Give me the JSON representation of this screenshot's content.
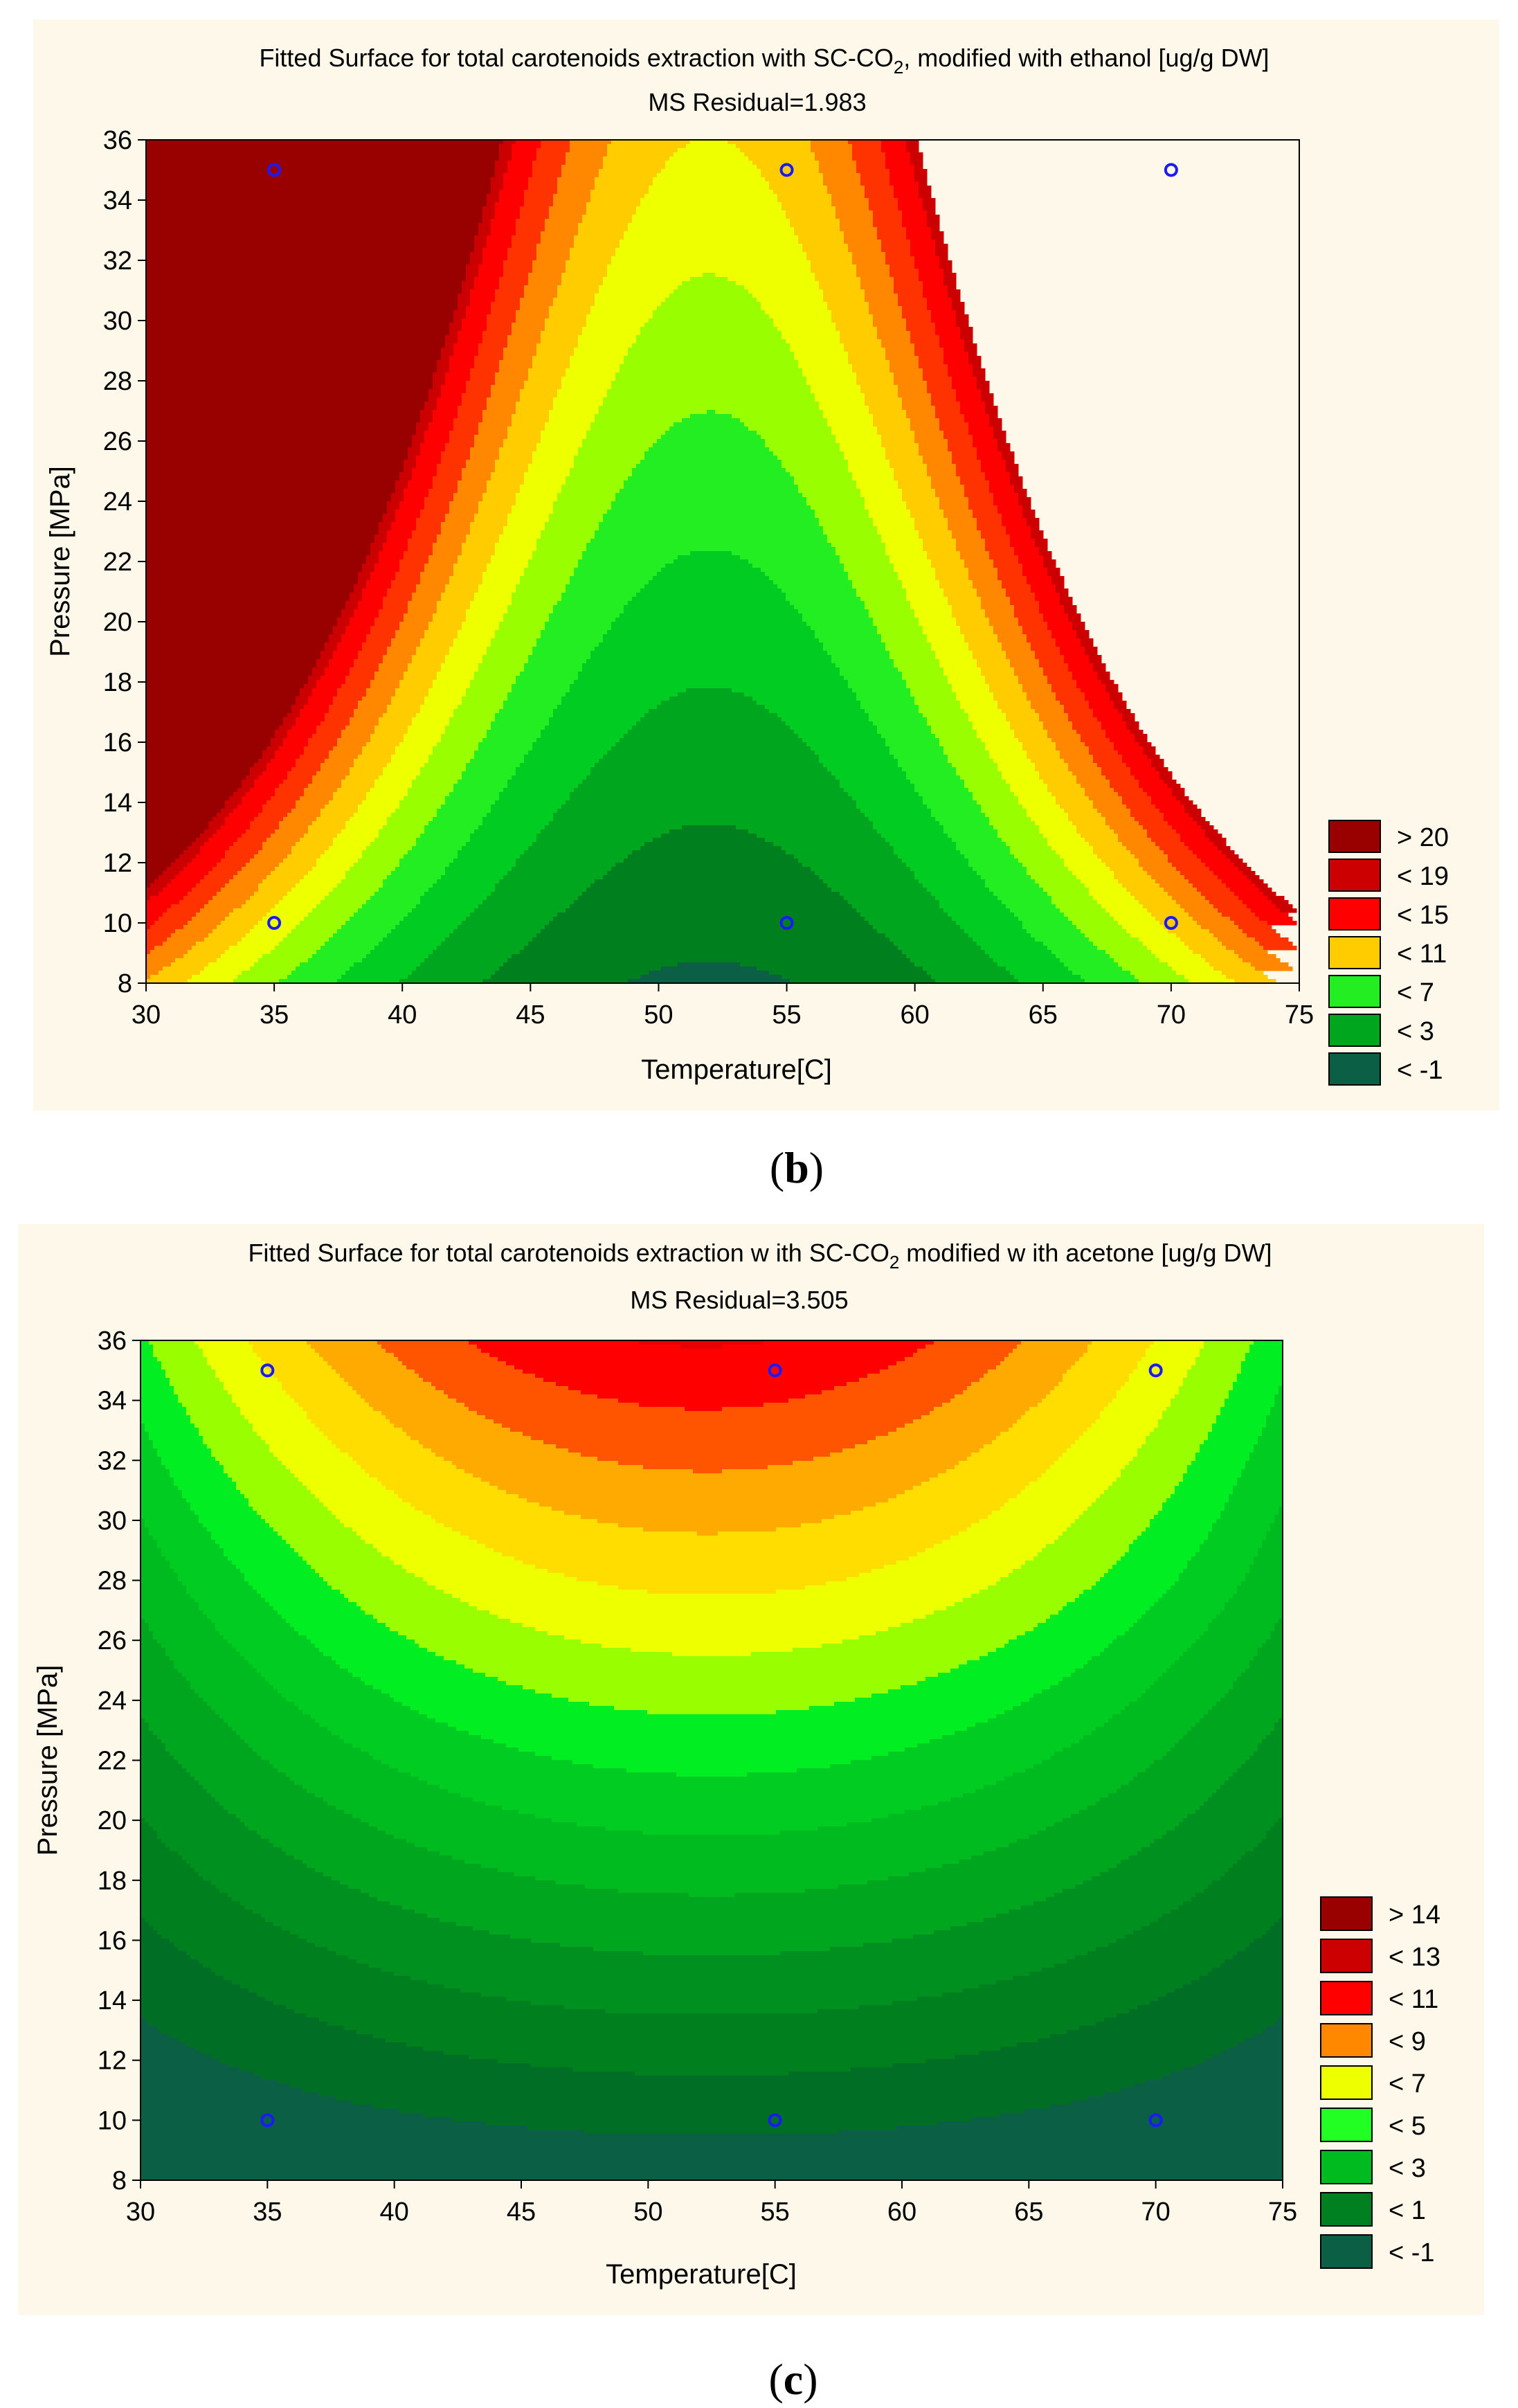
{
  "captions": {
    "b": {
      "open": "(",
      "letter": "b",
      "close": ")"
    },
    "c": {
      "open": "(",
      "letter": "c",
      "close": ")"
    }
  },
  "colors": {
    "panel_bg": "#fdf8ea",
    "design_point": "#1a1aff"
  },
  "chart_data": [
    {
      "id": "b",
      "type": "contour",
      "title_parts": [
        "Fitted Surface for total carotenoids extraction with SC-CO",
        "2",
        ", modified with ethanol [ug/g DW]"
      ],
      "subtitle": "MS Residual=1.983",
      "xlabel": "Temperature[C]",
      "ylabel": "Pressure [MPa]",
      "xlim": [
        30,
        75
      ],
      "ylim": [
        8,
        36
      ],
      "xticks": [
        30,
        35,
        40,
        45,
        50,
        55,
        60,
        65,
        70,
        75
      ],
      "yticks": [
        8,
        10,
        12,
        14,
        16,
        18,
        20,
        22,
        24,
        26,
        28,
        30,
        32,
        34,
        36
      ],
      "design_points": [
        [
          35,
          35
        ],
        [
          55,
          35
        ],
        [
          70,
          35
        ],
        [
          35,
          10
        ],
        [
          55,
          10
        ],
        [
          70,
          10
        ]
      ],
      "model": {
        "xc": 52,
        "y0": 8.5,
        "a": 0.4385,
        "b": 0.0039,
        "c": -1.1
      },
      "levels": [
        -1,
        1,
        3,
        5,
        7,
        9,
        11,
        13,
        15,
        17,
        19,
        20
      ],
      "fill_colors": [
        "#0b5f45",
        "#007f1e",
        "#00a61e",
        "#00cc22",
        "#22ee22",
        "#99ff00",
        "#eeff00",
        "#ffcc00",
        "#ff8800",
        "#ff3300",
        "#ff0000",
        "#cc0000",
        "#990000"
      ],
      "legend": [
        {
          "label": "> 20",
          "color": "#990000"
        },
        {
          "label": "< 19",
          "color": "#cc0000"
        },
        {
          "label": "< 15",
          "color": "#ff0000"
        },
        {
          "label": "< 11",
          "color": "#ffcc00"
        },
        {
          "label": "< 7",
          "color": "#22ee22"
        },
        {
          "label": "< 3",
          "color": "#00a61e"
        },
        {
          "label": "< -1",
          "color": "#0b5f45"
        }
      ]
    },
    {
      "id": "c",
      "type": "contour",
      "title_parts": [
        "Fitted Surface for total carotenoids extraction w ith SC-CO",
        "2",
        " modified w ith acetone [ug/g DW]"
      ],
      "subtitle": "MS Residual=3.505",
      "xlabel": "Temperature[C]",
      "ylabel": "Pressure [MPa]",
      "xlim": [
        30,
        75
      ],
      "ylim": [
        8,
        36
      ],
      "xticks": [
        30,
        35,
        40,
        45,
        50,
        55,
        60,
        65,
        70,
        75
      ],
      "yticks": [
        8,
        10,
        12,
        14,
        16,
        18,
        20,
        22,
        24,
        26,
        28,
        30,
        32,
        34,
        36
      ],
      "design_points": [
        [
          35,
          35
        ],
        [
          55,
          35
        ],
        [
          70,
          35
        ],
        [
          35,
          10
        ],
        [
          55,
          10
        ],
        [
          70,
          10
        ]
      ],
      "model": {
        "k": -1.75,
        "a": 0.5,
        "d": -0.0025,
        "b2": 0.0004,
        "b3": 0.0016,
        "xm": 52.5,
        "x0": 60,
        "y0": 10
      },
      "levels": [
        -1,
        0,
        1,
        2,
        3,
        4,
        5,
        6,
        7,
        8,
        9,
        10,
        11,
        12,
        13,
        14
      ],
      "fill_colors": [
        "#0b5f45",
        "#006e25",
        "#007f1e",
        "#009020",
        "#00a61e",
        "#00bb20",
        "#00cc22",
        "#00ee22",
        "#99ff00",
        "#eeff00",
        "#ffdd00",
        "#ffaa00",
        "#ff5500",
        "#ff0000",
        "#e60000",
        "#cc0000",
        "#990000"
      ],
      "legend": [
        {
          "label": "> 14",
          "color": "#990000"
        },
        {
          "label": "< 13",
          "color": "#cc0000"
        },
        {
          "label": "< 11",
          "color": "#ff0000"
        },
        {
          "label": "< 9",
          "color": "#ff8800"
        },
        {
          "label": "< 7",
          "color": "#eeff00"
        },
        {
          "label": "< 5",
          "color": "#22ff22"
        },
        {
          "label": "< 3",
          "color": "#00bb20"
        },
        {
          "label": "< 1",
          "color": "#008020"
        },
        {
          "label": "< -1",
          "color": "#0b5f45"
        }
      ]
    }
  ]
}
